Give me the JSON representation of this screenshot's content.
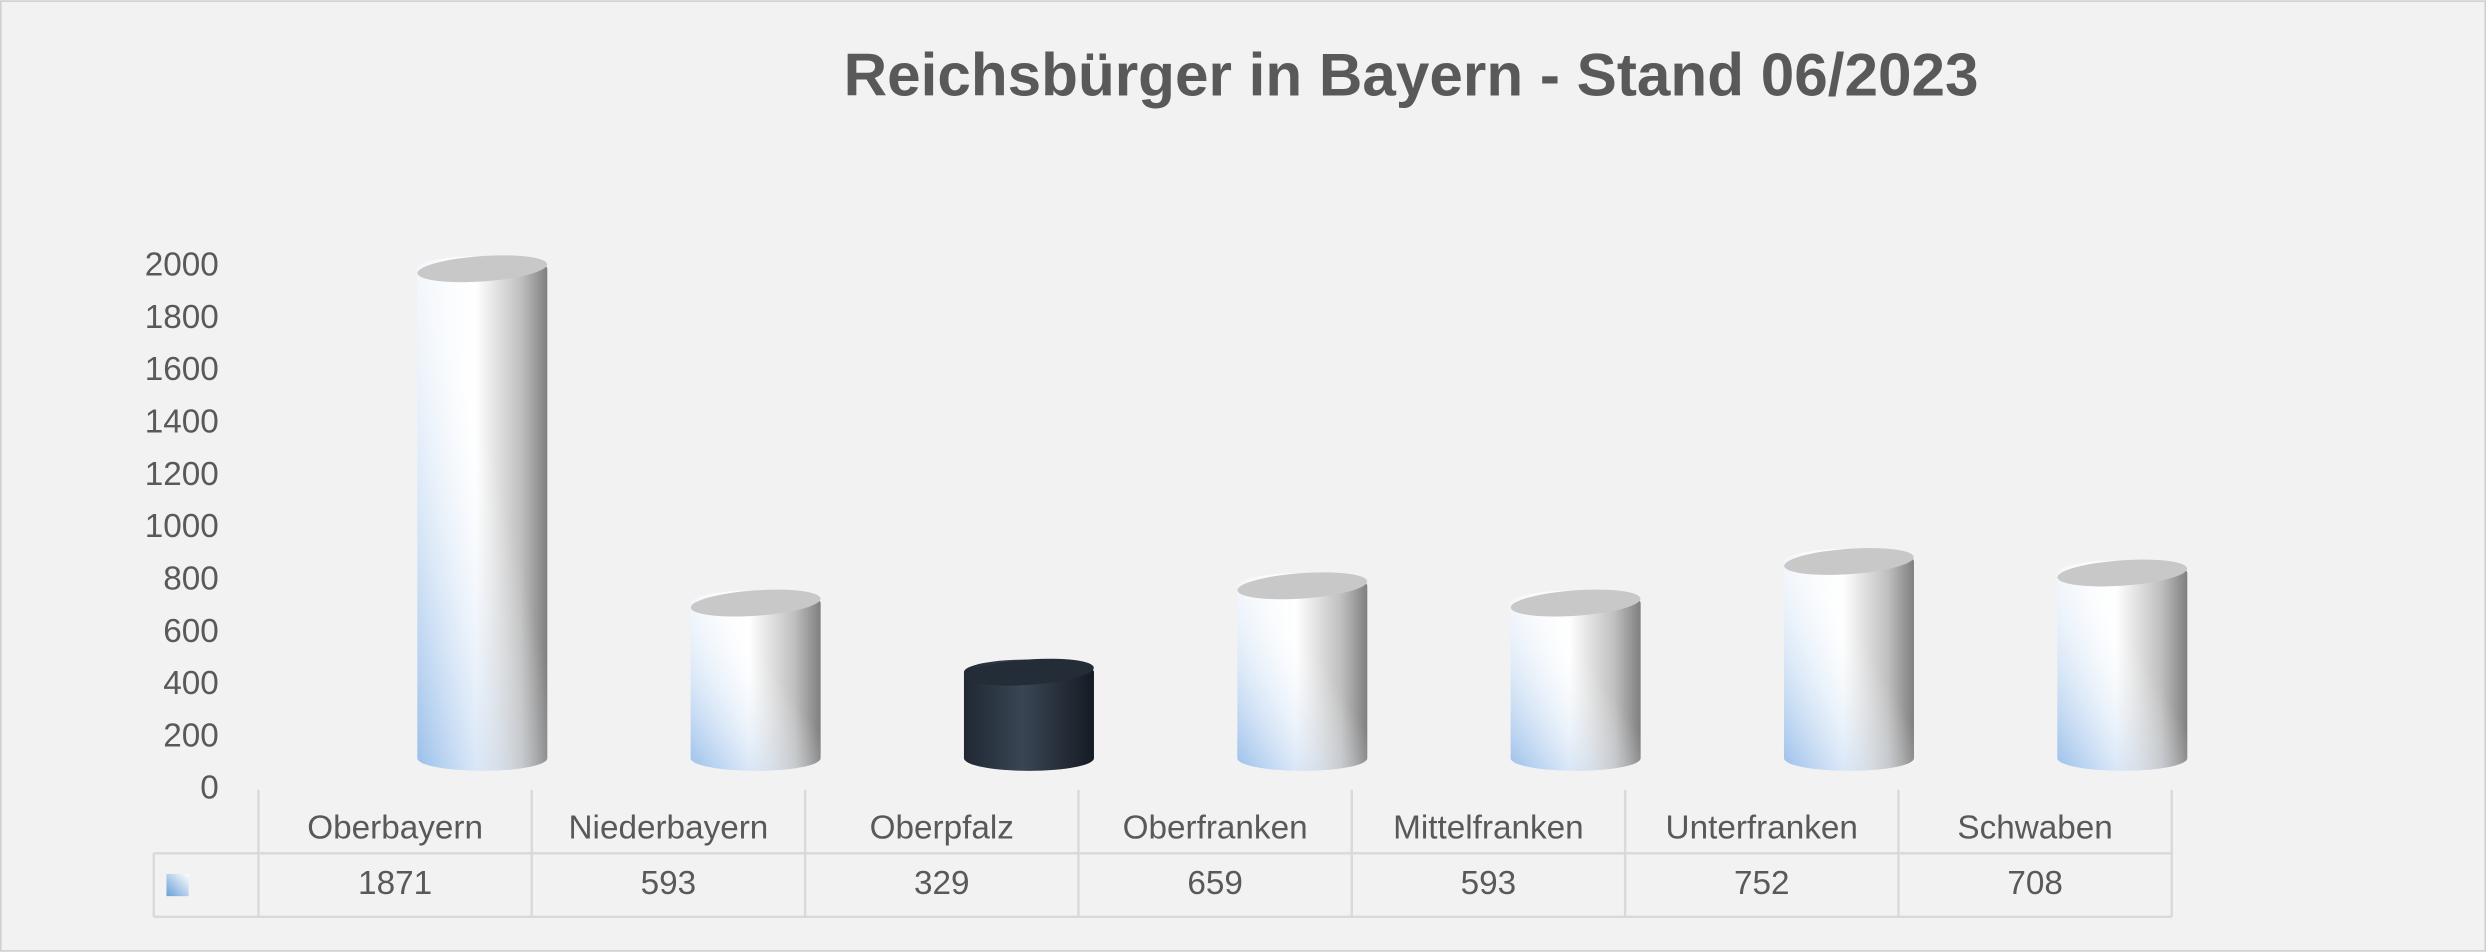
{
  "chart_data": {
    "type": "bar",
    "title": "Reichsbürger in Bayern  - Stand 06/2023",
    "categories": [
      "Oberbayern",
      "Niederbayern",
      "Oberpfalz",
      "Oberfranken",
      "Mittelfranken",
      "Unterfranken",
      "Schwaben"
    ],
    "values": [
      1871,
      593,
      329,
      659,
      593,
      752,
      708
    ],
    "colors": [
      "#ffffff",
      "#ffffff",
      "#2b3440",
      "#ffffff",
      "#ffffff",
      "#ffffff",
      "#ffffff"
    ],
    "ylim": [
      0,
      2000
    ],
    "yticks": [
      0,
      200,
      400,
      600,
      800,
      1000,
      1200,
      1400,
      1600,
      1800,
      2000
    ],
    "grid": false,
    "data_table": true
  }
}
